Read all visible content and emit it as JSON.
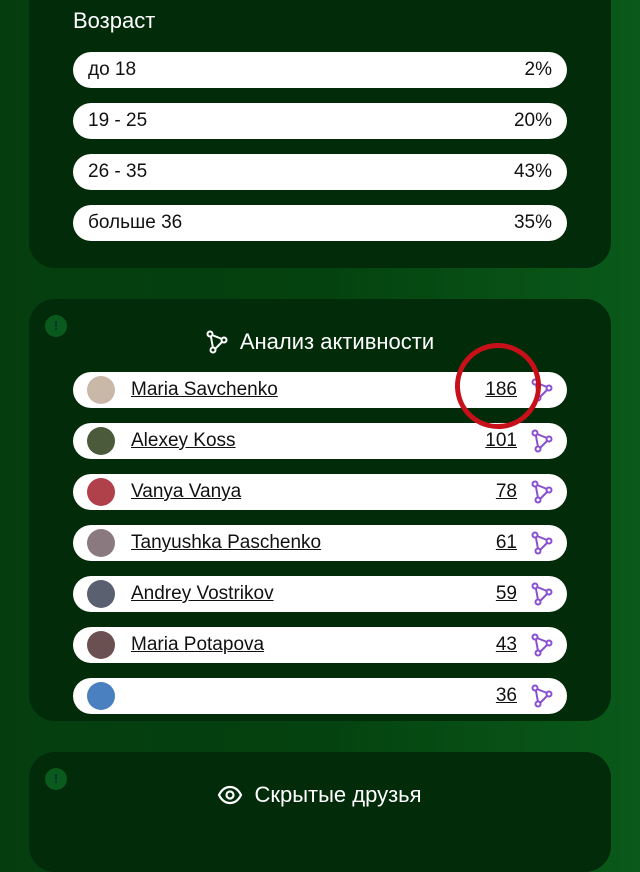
{
  "age": {
    "title": "Возраст",
    "rows": [
      {
        "label": "до 18",
        "value": "2%"
      },
      {
        "label": "19 - 25",
        "value": "20%"
      },
      {
        "label": "26 - 35",
        "value": "43%"
      },
      {
        "label": "больше 36",
        "value": "35%"
      }
    ]
  },
  "activity": {
    "title": "Анализ активности",
    "badge": "!",
    "users": [
      {
        "name": "Maria Savchenko",
        "count": "186",
        "avatar": "#c9b7a8"
      },
      {
        "name": "Alexey Koss",
        "count": "101",
        "avatar": "#4a5a3a"
      },
      {
        "name": "Vanya Vanya",
        "count": "78",
        "avatar": "#b0404a"
      },
      {
        "name": "Tanyushka Paschenko",
        "count": "61",
        "avatar": "#8a7a80"
      },
      {
        "name": "Andrey Vostrikov",
        "count": "59",
        "avatar": "#5a6070"
      },
      {
        "name": "Maria Potapova",
        "count": "43",
        "avatar": "#6a5050"
      },
      {
        "name": "",
        "count": "36",
        "avatar": "#4a80c0"
      }
    ]
  },
  "hidden": {
    "title": "Скрытые друзья",
    "badge": "!"
  },
  "colors": {
    "accent": "#8a4fd0",
    "highlight": "#c8101a"
  }
}
